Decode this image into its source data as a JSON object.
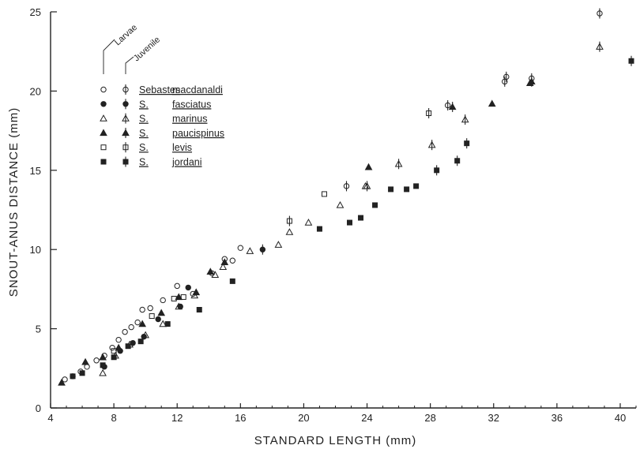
{
  "chart_data": {
    "type": "scatter",
    "title": "",
    "xlabel": "STANDARD LENGTH (mm)",
    "ylabel": "SNOUT-ANUS DISTANCE (mm)",
    "xlim": [
      4,
      41
    ],
    "ylim": [
      0,
      25
    ],
    "x_ticks": [
      4,
      8,
      12,
      16,
      20,
      24,
      28,
      32,
      36,
      40
    ],
    "y_ticks": [
      0,
      5,
      10,
      15,
      20,
      25
    ],
    "grid": false,
    "legend_placement": "top-left",
    "stage_labels": [
      "Larvae",
      "Juvenile"
    ],
    "series": [
      {
        "genus_label": "Sebastes",
        "species_label": "macdanaldi",
        "larvae_marker": "open-circle",
        "juvenile_marker": "open-circle-bar",
        "larvae": [
          [
            4.9,
            1.8
          ],
          [
            5.4,
            2.0
          ],
          [
            5.9,
            2.3
          ],
          [
            6.3,
            2.6
          ],
          [
            6.9,
            3.0
          ],
          [
            7.4,
            3.3
          ],
          [
            7.9,
            3.8
          ],
          [
            8.3,
            4.3
          ],
          [
            8.7,
            4.8
          ],
          [
            9.1,
            5.1
          ],
          [
            9.5,
            5.4
          ],
          [
            9.8,
            6.2
          ],
          [
            10.3,
            6.3
          ],
          [
            11.1,
            6.8
          ],
          [
            12.0,
            7.7
          ],
          [
            13.0,
            7.2
          ],
          [
            14.2,
            8.5
          ],
          [
            15.0,
            9.4
          ],
          [
            15.5,
            9.3
          ],
          [
            16.0,
            10.1
          ]
        ],
        "juvenile": [
          [
            22.7,
            14.0
          ],
          [
            29.1,
            19.1
          ],
          [
            32.7,
            20.6
          ],
          [
            32.8,
            20.9
          ],
          [
            34.4,
            20.8
          ],
          [
            38.7,
            24.9
          ]
        ]
      },
      {
        "genus_label": "S.",
        "species_label": "fasciatus",
        "larvae_marker": "filled-circle",
        "juvenile_marker": "filled-circle-bar",
        "larvae": [
          [
            7.4,
            2.6
          ],
          [
            8.4,
            3.6
          ],
          [
            9.2,
            4.1
          ],
          [
            9.9,
            4.5
          ],
          [
            10.8,
            5.6
          ],
          [
            12.2,
            6.4
          ],
          [
            12.7,
            7.6
          ]
        ],
        "juvenile": [
          [
            17.4,
            10.0
          ]
        ]
      },
      {
        "genus_label": "S.",
        "species_label": "marinus",
        "larvae_marker": "open-triangle",
        "juvenile_marker": "open-triangle-bar",
        "larvae": [
          [
            7.3,
            2.2
          ],
          [
            8.1,
            3.3
          ],
          [
            9.0,
            4.0
          ],
          [
            10.0,
            4.6
          ],
          [
            11.1,
            5.3
          ],
          [
            12.1,
            6.4
          ],
          [
            13.1,
            7.1
          ],
          [
            14.4,
            8.4
          ],
          [
            14.9,
            8.9
          ],
          [
            16.6,
            9.9
          ],
          [
            18.4,
            10.3
          ],
          [
            19.1,
            11.1
          ],
          [
            20.3,
            11.7
          ],
          [
            22.3,
            12.8
          ],
          [
            23.9,
            14.0
          ]
        ],
        "juvenile": [
          [
            24.0,
            14.0
          ],
          [
            26.0,
            15.4
          ],
          [
            28.1,
            16.6
          ],
          [
            30.2,
            18.2
          ],
          [
            38.7,
            22.8
          ]
        ]
      },
      {
        "genus_label": "S.",
        "species_label": "paucispinus",
        "larvae_marker": "filled-triangle",
        "juvenile_marker": "filled-triangle-bar",
        "larvae": [
          [
            4.7,
            1.6
          ],
          [
            6.2,
            2.9
          ],
          [
            7.3,
            3.2
          ],
          [
            8.3,
            3.8
          ],
          [
            9.8,
            5.3
          ],
          [
            11.0,
            6.0
          ],
          [
            12.1,
            7.0
          ],
          [
            13.2,
            7.3
          ],
          [
            14.1,
            8.6
          ],
          [
            15.0,
            9.2
          ],
          [
            24.1,
            15.2
          ],
          [
            31.9,
            19.2
          ],
          [
            34.3,
            20.5
          ]
        ],
        "juvenile": [
          [
            29.4,
            19.0
          ],
          [
            34.4,
            20.6
          ]
        ]
      },
      {
        "genus_label": "S.",
        "species_label": "levis",
        "larvae_marker": "open-square",
        "juvenile_marker": "open-square-bar",
        "larvae": [
          [
            8.0,
            3.6
          ],
          [
            10.4,
            5.8
          ],
          [
            11.8,
            6.9
          ],
          [
            12.4,
            7.0
          ],
          [
            21.3,
            13.5
          ]
        ],
        "juvenile": [
          [
            19.1,
            11.8
          ],
          [
            27.9,
            18.6
          ]
        ]
      },
      {
        "genus_label": "S.",
        "species_label": "jordani",
        "larvae_marker": "filled-square",
        "juvenile_marker": "filled-square-bar",
        "larvae": [
          [
            5.4,
            2.0
          ],
          [
            6.0,
            2.2
          ],
          [
            7.3,
            2.7
          ],
          [
            8.0,
            3.2
          ],
          [
            8.9,
            3.9
          ],
          [
            9.7,
            4.2
          ],
          [
            11.4,
            5.3
          ],
          [
            13.4,
            6.2
          ],
          [
            15.5,
            8.0
          ],
          [
            21.0,
            11.3
          ],
          [
            22.9,
            11.7
          ],
          [
            23.6,
            12.0
          ],
          [
            24.5,
            12.8
          ],
          [
            25.5,
            13.8
          ],
          [
            26.5,
            13.8
          ],
          [
            27.1,
            14.0
          ]
        ],
        "juvenile": [
          [
            28.4,
            15.0
          ],
          [
            29.7,
            15.6
          ],
          [
            30.3,
            16.7
          ],
          [
            40.7,
            21.9
          ]
        ]
      }
    ]
  }
}
